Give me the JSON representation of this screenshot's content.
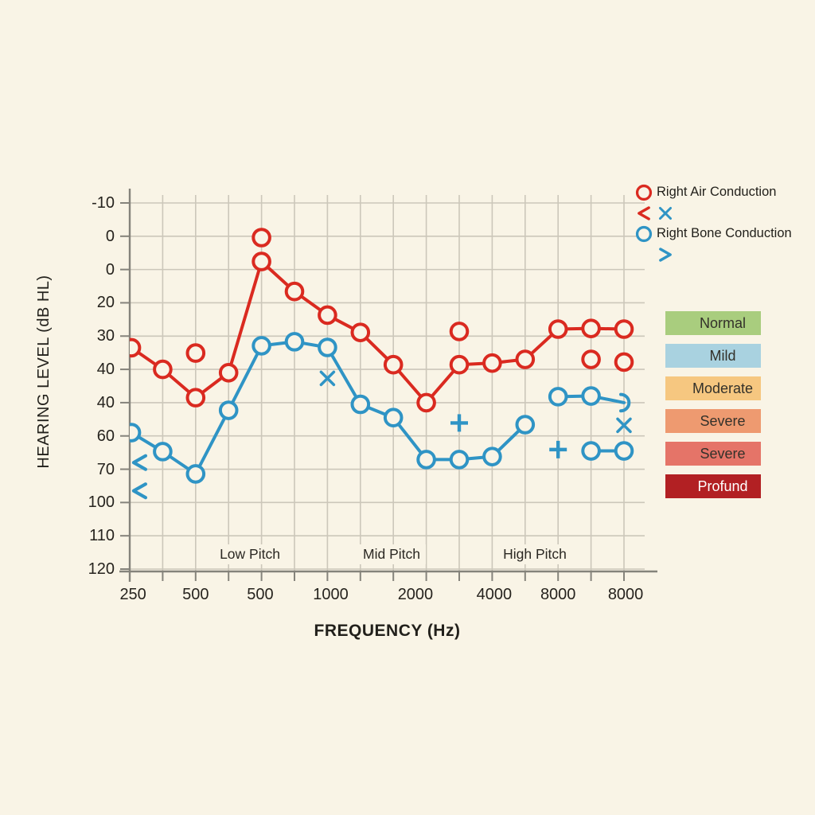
{
  "figure": {
    "x_axis_title": "FREQUENCY (Hz)",
    "y_axis_title": "HEARING LEVEL (dB HL)"
  },
  "colors": {
    "background": "#f9f4e6",
    "grid": "#ccc7ba",
    "axis": "#85837b",
    "text": "#27241f",
    "air": "#da2a20",
    "bone": "#2f94c5"
  },
  "chart_data": {
    "type": "line",
    "title": "",
    "xlabel": "FREQUENCY (Hz)",
    "ylabel": "HEARING LEVEL (dB HL)",
    "y_unit": "dB HL",
    "grid": true,
    "x_tick_labels": [
      "250",
      "500",
      "500",
      "1000",
      "2000",
      "4000",
      "8000",
      "8000"
    ],
    "y_tick_labels": [
      "-10",
      "0",
      "0",
      "20",
      "30",
      "40",
      "40",
      "60",
      "70",
      "100",
      "110",
      "120"
    ],
    "region_labels": [
      "Low Pitch",
      "Mid Pitch",
      "High Pitch"
    ],
    "legend_position": "top-right",
    "series": [
      {
        "name": "Right Air Conduction",
        "color": "#da2a20",
        "marker": "circle",
        "segments": [
          [
            [
              0.05,
              33.5
            ],
            [
              1,
              40
            ],
            [
              2,
              48.5
            ],
            [
              3,
              41
            ],
            [
              4,
              7.6
            ],
            [
              5,
              16.6
            ],
            [
              6,
              23.7
            ],
            [
              7,
              28.9
            ],
            [
              8,
              38.6
            ],
            [
              9,
              50
            ],
            [
              10,
              38.6
            ],
            [
              11,
              38.1
            ],
            [
              12,
              37
            ],
            [
              13,
              27.9
            ],
            [
              14,
              27.7
            ],
            [
              15,
              27.9
            ]
          ]
        ],
        "isolated_markers": [
          {
            "glyph": "circle",
            "gx": 2,
            "db": 35.1
          },
          {
            "glyph": "circle",
            "gx": 4,
            "db": 0.4
          },
          {
            "glyph": "circle",
            "gx": 10,
            "db": 28.6
          },
          {
            "glyph": "circle",
            "gx": 14,
            "db": 37.0
          },
          {
            "glyph": "circle",
            "gx": 15,
            "db": 37.8
          }
        ]
      },
      {
        "name": "Right Bone Conduction",
        "color": "#2f94c5",
        "marker": "circle",
        "segments": [
          [
            [
              0.05,
              59
            ],
            [
              1,
              64.7
            ],
            [
              2,
              71.4
            ],
            [
              3,
              52.3
            ],
            [
              4,
              32.9
            ],
            [
              5,
              31.7
            ],
            [
              6,
              33.4
            ],
            [
              7,
              50.5
            ],
            [
              8,
              54.5
            ],
            [
              9,
              67.1
            ],
            [
              10,
              67.1
            ],
            [
              11,
              66.2
            ],
            [
              12,
              56.6
            ]
          ],
          [
            [
              13,
              48.2
            ],
            [
              14,
              48
            ],
            [
              15,
              50,
              "arc"
            ]
          ],
          [
            [
              14,
              64.5
            ],
            [
              15,
              64.5
            ]
          ]
        ],
        "isolated_markers": [
          {
            "glyph": "<",
            "gx": 0.3,
            "db": 68
          },
          {
            "glyph": "<",
            "gx": 0.3,
            "db": 76.5
          },
          {
            "glyph": "x",
            "gx": 6,
            "db": 42.7
          },
          {
            "glyph": "+",
            "gx": 10,
            "db": 56.1
          },
          {
            "glyph": "+",
            "gx": 13,
            "db": 64.1
          },
          {
            "glyph": "x",
            "gx": 15,
            "db": 56.8
          }
        ]
      }
    ]
  },
  "legend": {
    "items": [
      {
        "symbols": [
          {
            "glyph": "circle",
            "color": "#da2a20"
          }
        ],
        "label": "Right Air Conduction"
      },
      {
        "symbols": [
          {
            "glyph": "<",
            "color": "#da2a20"
          },
          {
            "glyph": "x",
            "color": "#2f94c5"
          }
        ],
        "label": ""
      },
      {
        "symbols": [
          {
            "glyph": "circle",
            "color": "#2f94c5"
          }
        ],
        "label": "Right Bone Conduction"
      },
      {
        "symbols": [
          {
            "glyph": "none",
            "color": ""
          },
          {
            "glyph": ">",
            "color": "#2f94c5"
          }
        ],
        "label": ""
      }
    ]
  },
  "severity_scale": {
    "items": [
      {
        "label": "Normal",
        "color": "#a9cd7e",
        "text_color": "#33312a"
      },
      {
        "label": "Mild",
        "color": "#a9d2e0",
        "text_color": "#33312a"
      },
      {
        "label": "Moderate",
        "color": "#f6c780",
        "text_color": "#33312a"
      },
      {
        "label": "Severe",
        "color": "#ee9a70",
        "text_color": "#33312a"
      },
      {
        "label": "Severe",
        "color": "#e57468",
        "text_color": "#33312a"
      },
      {
        "label": "Profund",
        "color": "#b22023",
        "text_color": "#ffffff"
      }
    ]
  }
}
